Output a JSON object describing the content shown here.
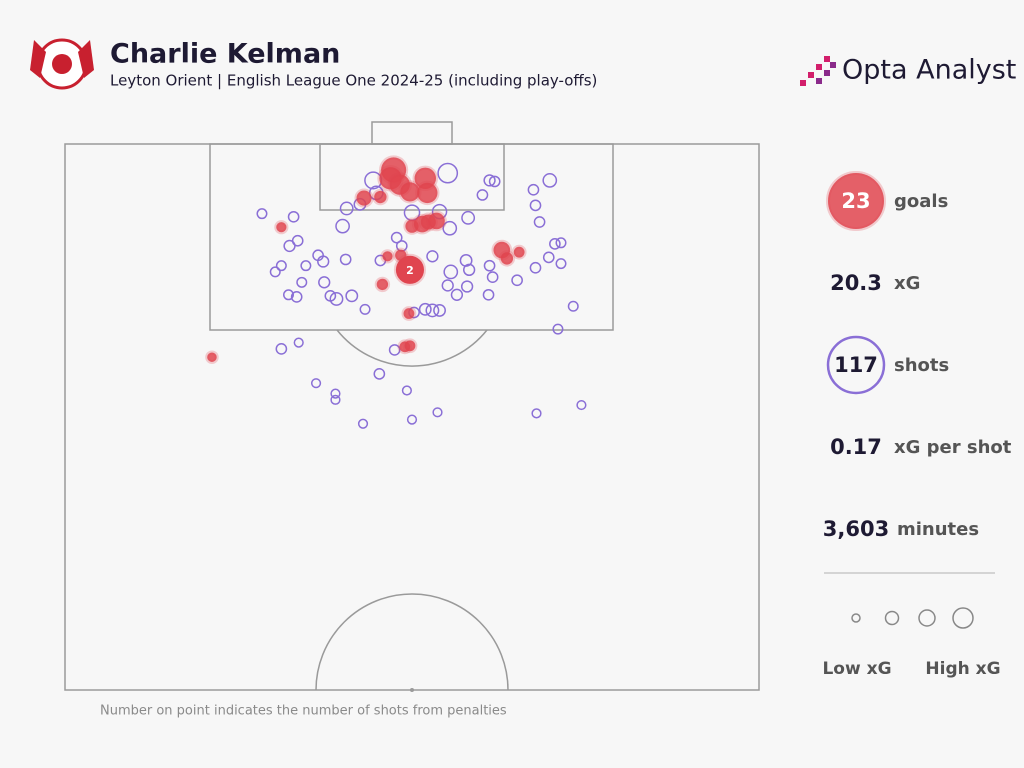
{
  "chart_data": {
    "type": "shotmap",
    "title": "Charlie Kelman",
    "subtitle": "Leyton Orient | English League One 2024-25 (including play-offs)",
    "brand": "Opta Analyst",
    "footnote": "Number on point indicates the number of shots from penalties",
    "xlim": [
      0,
      68
    ],
    "ylim": [
      0,
      52.5
    ],
    "series": [
      {
        "color": "#8a6fd6",
        "x": [
          37.5,
          30.2,
          30.5,
          27.6,
          28.9,
          27.2,
          34.0,
          36.7,
          37.7,
          39.5,
          41.6,
          42.1,
          40.9,
          47.5,
          45.9,
          46.1,
          46.5,
          19.3,
          22.4,
          22.0,
          22.8,
          24.8,
          23.6,
          25.3,
          27.5,
          30.9,
          32.5,
          33.0,
          36.0,
          39.3,
          37.8,
          39.6,
          41.6,
          41.9,
          44.3,
          46.1,
          47.4,
          48.0,
          48.6,
          48.6,
          20.6,
          21.2,
          23.2,
          25.4,
          21.9,
          22.7,
          26.0,
          26.6,
          28.1,
          37.5,
          38.4,
          39.4,
          41.5,
          35.3,
          36.0,
          36.7,
          34.2,
          29.4,
          49.8,
          48.3,
          21.2,
          22.9,
          32.3,
          30.8,
          24.6,
          26.5,
          26.5,
          33.5,
          29.2,
          34.0,
          36.5,
          46.2,
          50.6
        ],
        "y": [
          2.8,
          3.5,
          4.7,
          6.2,
          5.8,
          7.9,
          6.6,
          6.5,
          8.1,
          7.1,
          3.5,
          3.6,
          4.9,
          3.5,
          4.4,
          5.9,
          7.5,
          6.7,
          7.0,
          9.8,
          9.3,
          10.7,
          11.7,
          11.3,
          11.1,
          11.2,
          9.0,
          9.8,
          10.8,
          11.2,
          12.3,
          12.1,
          11.7,
          12.8,
          13.1,
          11.9,
          10.9,
          9.6,
          9.5,
          11.5,
          12.3,
          11.7,
          13.3,
          13.3,
          14.5,
          14.7,
          14.6,
          14.9,
          14.6,
          13.6,
          14.5,
          13.7,
          14.5,
          15.9,
          16.0,
          16.0,
          16.2,
          15.9,
          15.6,
          17.8,
          19.7,
          19.1,
          19.8,
          22.1,
          23.0,
          24.0,
          24.6,
          23.7,
          26.9,
          26.5,
          25.8,
          25.9,
          25.1
        ],
        "xg": [
          0.3,
          0.2,
          0.1,
          0.08,
          0.06,
          0.1,
          0.15,
          0.12,
          0.1,
          0.08,
          0.05,
          0.04,
          0.04,
          0.1,
          0.04,
          0.04,
          0.04,
          0.03,
          0.04,
          0.05,
          0.04,
          0.04,
          0.03,
          0.05,
          0.04,
          0.04,
          0.04,
          0.04,
          0.05,
          0.06,
          0.1,
          0.05,
          0.04,
          0.04,
          0.04,
          0.04,
          0.04,
          0.04,
          0.03,
          0.03,
          0.03,
          0.03,
          0.03,
          0.05,
          0.03,
          0.04,
          0.04,
          0.08,
          0.06,
          0.05,
          0.05,
          0.05,
          0.04,
          0.06,
          0.08,
          0.06,
          0.04,
          0.03,
          0.03,
          0.03,
          0.04,
          0.02,
          0.04,
          0.04,
          0.02,
          0.02,
          0.02,
          0.02,
          0.02,
          0.02,
          0.02,
          0.02,
          0.02
        ]
      },
      {
        "color": "#e0454f",
        "x": [
          32.2,
          31.9,
          32.8,
          33.8,
          35.3,
          35.5,
          29.3,
          30.9,
          34.0,
          35.0,
          35.6,
          36.4,
          42.8,
          43.3,
          44.5,
          31.6,
          32.9,
          31.1,
          33.7,
          33.3,
          33.8,
          14.4,
          21.2
        ],
        "y": [
          2.5,
          3.3,
          3.9,
          4.6,
          3.3,
          4.7,
          5.2,
          5.1,
          7.9,
          7.7,
          7.5,
          7.4,
          10.2,
          11.0,
          10.4,
          10.8,
          10.7,
          13.5,
          16.3,
          19.5,
          19.4,
          20.5,
          8.0
        ],
        "xg": [
          0.6,
          0.45,
          0.35,
          0.3,
          0.4,
          0.35,
          0.15,
          0.08,
          0.1,
          0.2,
          0.15,
          0.2,
          0.2,
          0.08,
          0.05,
          0.04,
          0.06,
          0.06,
          0.05,
          0.05,
          0.05,
          0.03,
          0.04
        ]
      }
    ],
    "penalty": {
      "x": 33.8,
      "y": 12.1,
      "xg": 0.79,
      "count": 2,
      "color": "#e0454f"
    },
    "stats": [
      {
        "value": 23,
        "label": "goals"
      },
      {
        "value": {
          "value": 20.3,
          "label": "20.3"
        },
        "label": "xG"
      },
      {
        "value": 117,
        "label": "shots"
      },
      {
        "value": {
          "value": 0.17,
          "label": "0.17"
        },
        "label": "xG per shot"
      },
      {
        "value": {
          "value": 3603,
          "label": "3,603"
        },
        "label": "minutes"
      }
    ],
    "size_legend": [
      "Low xG",
      "High xG"
    ]
  }
}
